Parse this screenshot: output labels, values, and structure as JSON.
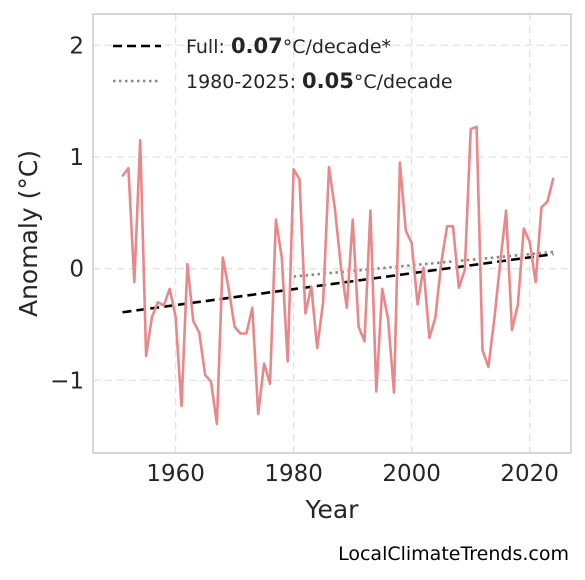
{
  "chart_data": {
    "type": "line",
    "xlabel": "Year",
    "ylabel": "Anomaly (°C)",
    "xlim": [
      1946,
      2027
    ],
    "ylim": [
      -1.65,
      2.28
    ],
    "x_ticks": [
      1960,
      1980,
      2000,
      2020
    ],
    "x_tick_labels": [
      "1960",
      "1980",
      "2000",
      "2020"
    ],
    "y_ticks": [
      -1,
      0,
      1,
      2
    ],
    "y_tick_labels": [
      "−1",
      "0",
      "1",
      "2"
    ],
    "grid": true,
    "legend_position": "top-left",
    "credit": "LocalClimateTrends.com",
    "colors": {
      "series": "#e8888a",
      "full_trend": "#000000",
      "recent_trend": "#888888",
      "grid": "#e2e2e2",
      "frame": "#cccccc"
    },
    "series": [
      {
        "x": [
          1951,
          1952,
          1953,
          1954,
          1955,
          1956,
          1957,
          1958,
          1959,
          1960,
          1961,
          1962,
          1963,
          1964,
          1965,
          1966,
          1967,
          1968,
          1969,
          1970,
          1971,
          1972,
          1973,
          1974,
          1975,
          1976,
          1977,
          1978,
          1979,
          1980,
          1981,
          1982,
          1983,
          1984,
          1985,
          1986,
          1987,
          1988,
          1989,
          1990,
          1991,
          1992,
          1993,
          1994,
          1995,
          1996,
          1997,
          1998,
          1999,
          2000,
          2001,
          2002,
          2003,
          2004,
          2005,
          2006,
          2007,
          2008,
          2009,
          2010,
          2011,
          2012,
          2013,
          2014,
          2015,
          2016,
          2017,
          2018,
          2019,
          2020,
          2021,
          2022,
          2023,
          2024
        ],
        "y": [
          0.83,
          0.9,
          -0.12,
          1.15,
          -0.78,
          -0.43,
          -0.3,
          -0.33,
          -0.18,
          -0.43,
          -1.23,
          0.04,
          -0.47,
          -0.57,
          -0.95,
          -1.01,
          -1.39,
          0.1,
          -0.18,
          -0.52,
          -0.58,
          -0.58,
          -0.35,
          -1.3,
          -0.85,
          -1.03,
          0.44,
          0.1,
          -0.83,
          0.89,
          0.8,
          -0.4,
          -0.16,
          -0.71,
          -0.3,
          0.91,
          0.53,
          0.02,
          -0.35,
          0.44,
          -0.52,
          -0.65,
          0.52,
          -1.1,
          -0.18,
          -0.45,
          -1.11,
          0.95,
          0.34,
          0.23,
          -0.32,
          0.01,
          -0.62,
          -0.44,
          0.05,
          0.38,
          0.38,
          -0.17,
          -0.01,
          1.25,
          1.27,
          -0.73,
          -0.88,
          -0.45,
          0.05,
          0.52,
          -0.55,
          -0.32,
          0.36,
          0.24,
          -0.12,
          0.55,
          0.6,
          0.81
        ]
      }
    ],
    "trends": [
      {
        "label_prefix": "Full: ",
        "rate": "0.07",
        "label_suffix": "°C/decade*",
        "style": "dashed",
        "x": [
          1951,
          2024
        ],
        "y": [
          -0.39,
          0.13
        ]
      },
      {
        "label_prefix": "1980-2025: ",
        "rate": "0.05",
        "label_suffix": "°C/decade",
        "style": "dotted",
        "x": [
          1980,
          2024
        ],
        "y": [
          -0.07,
          0.15
        ]
      }
    ]
  }
}
